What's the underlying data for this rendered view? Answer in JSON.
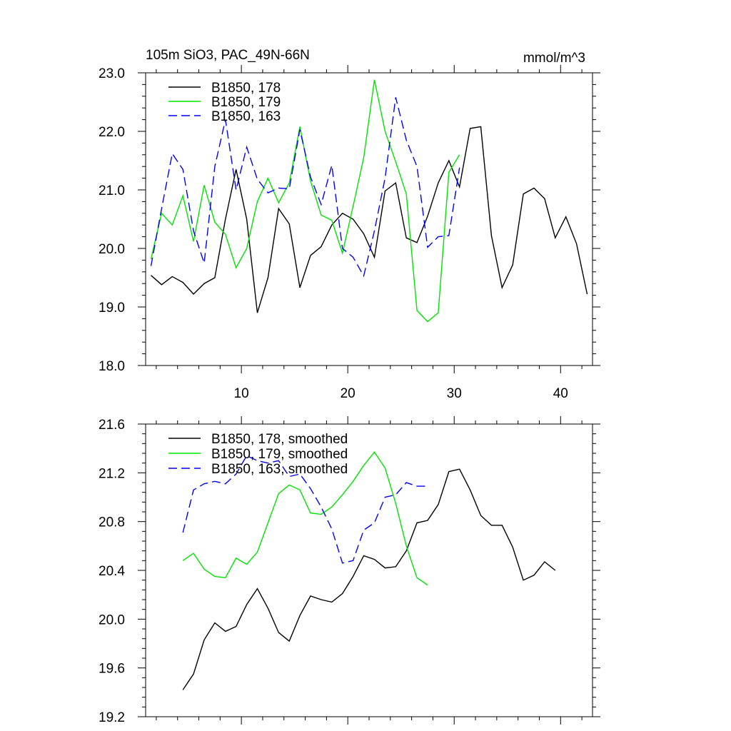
{
  "colors": {
    "s178": "#000000",
    "s179": "#00e600",
    "s163": "#0000ff"
  },
  "chart_data": [
    {
      "type": "line",
      "title": "105m SiO3, PAC_49N-66N",
      "units": "mmol/m^3",
      "xlim": [
        1,
        43
      ],
      "ylim": [
        18.0,
        23.0
      ],
      "xticks": [
        10,
        20,
        30,
        40
      ],
      "xtick_labels": [
        "10",
        "20",
        "30",
        "40"
      ],
      "yticks": [
        18.0,
        19.0,
        20.0,
        21.0,
        22.0,
        23.0
      ],
      "ytick_labels": [
        "18.0",
        "19.0",
        "20.0",
        "21.0",
        "22.0",
        "23.0"
      ],
      "legend_position": "top-left",
      "series": [
        {
          "name": "B1850, 178",
          "color": "#000000",
          "dash": "solid",
          "x_start": 1.5,
          "values": [
            19.54,
            19.38,
            19.52,
            19.42,
            19.22,
            19.4,
            19.5,
            20.5,
            21.35,
            20.5,
            18.9,
            19.5,
            20.68,
            20.42,
            19.33,
            19.88,
            20.03,
            20.4,
            20.6,
            20.5,
            20.25,
            19.85,
            20.98,
            21.12,
            20.18,
            20.1,
            20.55,
            21.12,
            21.5,
            21.05,
            22.05,
            22.08,
            20.22,
            19.33,
            19.72,
            20.93,
            21.03,
            20.85,
            20.18,
            20.54,
            20.08,
            19.22
          ]
        },
        {
          "name": "B1850, 179",
          "color": "#00e600",
          "dash": "solid",
          "x_start": 1.5,
          "values": [
            19.82,
            20.6,
            20.4,
            20.9,
            20.12,
            21.08,
            20.45,
            20.24,
            19.67,
            20.0,
            20.8,
            21.2,
            20.78,
            21.12,
            22.08,
            21.15,
            20.57,
            20.48,
            19.92,
            20.72,
            21.55,
            22.88,
            22.0,
            21.48,
            20.93,
            18.94,
            18.75,
            18.9,
            21.3,
            21.6
          ]
        },
        {
          "name": "B1850, 163",
          "color": "#0000ff",
          "dash": "dashed",
          "x_start": 1.5,
          "values": [
            19.7,
            20.68,
            21.62,
            21.35,
            20.3,
            19.75,
            21.4,
            22.2,
            21.0,
            21.73,
            21.18,
            20.95,
            21.03,
            21.02,
            22.03,
            21.22,
            20.75,
            21.42,
            20.0,
            19.85,
            19.53,
            20.3,
            21.2,
            22.58,
            21.85,
            21.4,
            20.02,
            20.2,
            20.22,
            21.38
          ]
        }
      ]
    },
    {
      "type": "line",
      "title": "",
      "xlim": [
        1,
        43
      ],
      "ylim": [
        19.2,
        21.6
      ],
      "xticks": [
        10,
        20,
        30,
        40
      ],
      "yticks": [
        19.2,
        19.6,
        20.0,
        20.4,
        20.8,
        21.2,
        21.6
      ],
      "ytick_labels": [
        "19.2",
        "19.6",
        "20.0",
        "20.4",
        "20.8",
        "21.2",
        "21.6"
      ],
      "legend_position": "top-left",
      "series": [
        {
          "name": "B1850, 178, smoothed",
          "color": "#000000",
          "dash": "solid",
          "x_start": 4.5,
          "values": [
            19.42,
            19.55,
            19.83,
            19.97,
            19.9,
            19.94,
            20.12,
            20.25,
            20.09,
            19.89,
            19.82,
            20.03,
            20.19,
            20.16,
            20.14,
            20.21,
            20.35,
            20.52,
            20.49,
            20.42,
            20.43,
            20.56,
            20.79,
            20.81,
            20.94,
            21.21,
            21.23,
            21.06,
            20.85,
            20.77,
            20.77,
            20.59,
            20.32,
            20.36,
            20.47,
            20.4
          ]
        },
        {
          "name": "B1850, 179, smoothed",
          "color": "#00e600",
          "dash": "solid",
          "x_start": 4.5,
          "values": [
            20.48,
            20.54,
            20.41,
            20.35,
            20.34,
            20.5,
            20.45,
            20.55,
            20.79,
            21.03,
            21.1,
            21.06,
            20.87,
            20.86,
            20.92,
            21.02,
            21.13,
            21.26,
            21.37,
            21.24,
            20.95,
            20.6,
            20.34,
            20.28
          ]
        },
        {
          "name": "B1850, 163, smoothed",
          "color": "#0000ff",
          "dash": "dashed",
          "x_start": 4.5,
          "values": [
            20.71,
            21.06,
            21.11,
            21.13,
            21.11,
            21.19,
            21.34,
            21.3,
            21.28,
            21.3,
            21.17,
            21.19,
            21.07,
            20.92,
            20.74,
            20.46,
            20.48,
            20.73,
            20.79,
            21.0,
            21.02,
            21.12,
            21.09,
            21.09
          ]
        }
      ]
    }
  ]
}
